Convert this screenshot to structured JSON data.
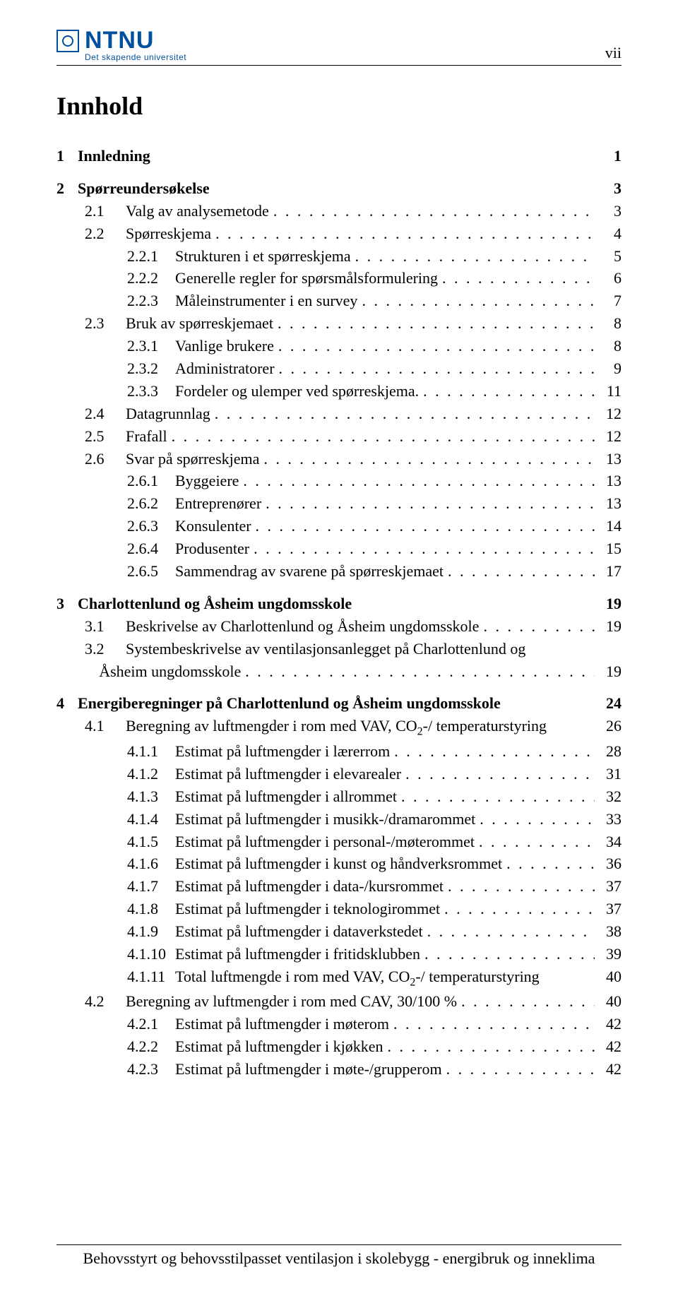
{
  "logo": {
    "title": "NTNU",
    "subtitle": "Det skapende universitet",
    "color": "#00509e"
  },
  "page_roman": "vii",
  "heading": "Innhold",
  "chapters": [
    {
      "num": "1",
      "title": "Innledning",
      "page": "1",
      "sections": []
    },
    {
      "num": "2",
      "title": "Spørreundersøkelse",
      "page": "3",
      "sections": [
        {
          "num": "2.1",
          "title": "Valg av analysemetode",
          "page": "3"
        },
        {
          "num": "2.2",
          "title": "Spørreskjema",
          "page": "4",
          "subs": [
            {
              "num": "2.2.1",
              "title": "Strukturen i et spørreskjema",
              "page": "5"
            },
            {
              "num": "2.2.2",
              "title": "Generelle regler for spørsmålsformulering",
              "page": "6"
            },
            {
              "num": "2.2.3",
              "title": "Måleinstrumenter i en survey",
              "page": "7"
            }
          ]
        },
        {
          "num": "2.3",
          "title": "Bruk av spørreskjemaet",
          "page": "8",
          "subs": [
            {
              "num": "2.3.1",
              "title": "Vanlige brukere",
              "page": "8"
            },
            {
              "num": "2.3.2",
              "title": "Administratorer",
              "page": "9"
            },
            {
              "num": "2.3.3",
              "title": "Fordeler og ulemper ved spørreskjema.",
              "page": "11"
            }
          ]
        },
        {
          "num": "2.4",
          "title": "Datagrunnlag",
          "page": "12"
        },
        {
          "num": "2.5",
          "title": "Frafall",
          "page": "12"
        },
        {
          "num": "2.6",
          "title": "Svar på spørreskjema",
          "page": "13",
          "subs": [
            {
              "num": "2.6.1",
              "title": "Byggeiere",
              "page": "13"
            },
            {
              "num": "2.6.2",
              "title": "Entreprenører",
              "page": "13"
            },
            {
              "num": "2.6.3",
              "title": "Konsulenter",
              "page": "14"
            },
            {
              "num": "2.6.4",
              "title": "Produsenter",
              "page": "15"
            },
            {
              "num": "2.6.5",
              "title": "Sammendrag av svarene på spørreskjemaet",
              "page": "17"
            }
          ]
        }
      ]
    },
    {
      "num": "3",
      "title": "Charlottenlund og Åsheim ungdomsskole",
      "page": "19",
      "sections": [
        {
          "num": "3.1",
          "title": "Beskrivelse av Charlottenlund og Åsheim ungdomsskole",
          "page": "19"
        },
        {
          "num": "3.2",
          "title": "Systembeskrivelse av ventilasjonsanlegget på Charlottenlund og Åsheim ungdomsskole",
          "page": "19",
          "multiline": true
        }
      ]
    },
    {
      "num": "4",
      "title": "Energiberegninger på Charlottenlund og Åsheim ungdomsskole",
      "page": "24",
      "sections": [
        {
          "num": "4.1",
          "title": "Beregning av luftmengder i rom med VAV, CO₂-/ temperaturstyring",
          "page": "26",
          "co2": true,
          "subs": [
            {
              "num": "4.1.1",
              "title": "Estimat på luftmengder i lærerrom",
              "page": "28"
            },
            {
              "num": "4.1.2",
              "title": "Estimat på luftmengder i elevarealer",
              "page": "31"
            },
            {
              "num": "4.1.3",
              "title": "Estimat på luftmengder i allrommet",
              "page": "32"
            },
            {
              "num": "4.1.4",
              "title": "Estimat på luftmengder i musikk-/dramarommet",
              "page": "33"
            },
            {
              "num": "4.1.5",
              "title": "Estimat på luftmengder i personal-/møterommet",
              "page": "34"
            },
            {
              "num": "4.1.6",
              "title": "Estimat på luftmengder i kunst og håndverksrommet",
              "page": "36"
            },
            {
              "num": "4.1.7",
              "title": "Estimat på luftmengder i data-/kursrommet",
              "page": "37"
            },
            {
              "num": "4.1.8",
              "title": "Estimat på luftmengder i teknologirommet",
              "page": "37"
            },
            {
              "num": "4.1.9",
              "title": "Estimat på luftmengder i dataverkstedet",
              "page": "38"
            },
            {
              "num": "4.1.10",
              "title": "Estimat på luftmengder i fritidsklubben",
              "page": "39"
            },
            {
              "num": "4.1.11",
              "title": "Total luftmengde i rom med VAV, CO₂-/ temperaturstyring",
              "page": "40",
              "co2": true
            }
          ]
        },
        {
          "num": "4.2",
          "title": "Beregning av luftmengder i rom med CAV, 30/100 %",
          "page": "40",
          "subs": [
            {
              "num": "4.2.1",
              "title": "Estimat på luftmengder i møterom",
              "page": "42"
            },
            {
              "num": "4.2.2",
              "title": "Estimat på luftmengder i kjøkken",
              "page": "42"
            },
            {
              "num": "4.2.3",
              "title": "Estimat på luftmengder i møte-/grupperom",
              "page": "42"
            }
          ]
        }
      ]
    }
  ],
  "footer": "Behovsstyrt og behovsstilpasset ventilasjon i skolebygg - energibruk og inneklima"
}
